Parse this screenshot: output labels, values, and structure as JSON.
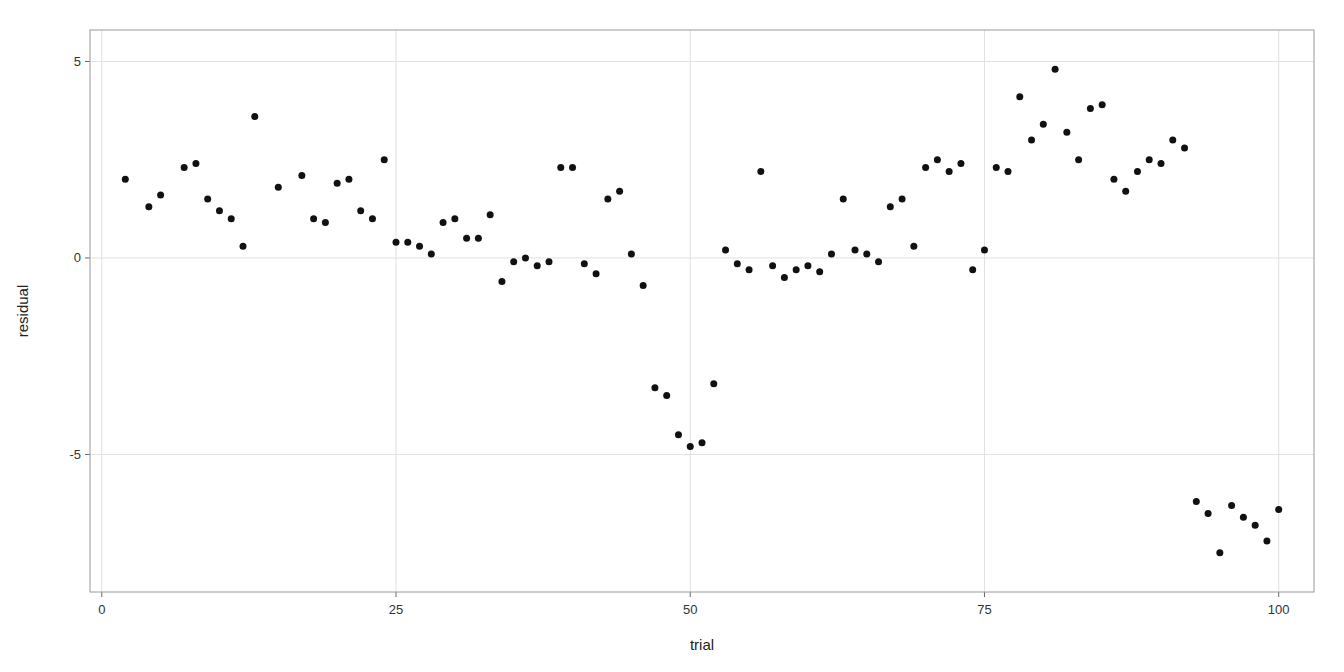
{
  "chart_data": {
    "type": "scatter",
    "xlabel": "trial",
    "ylabel": "residual",
    "x": [
      2,
      4,
      5,
      7,
      8,
      9,
      10,
      11,
      12,
      13,
      15,
      17,
      18,
      19,
      20,
      21,
      22,
      23,
      24,
      25,
      26,
      27,
      28,
      29,
      30,
      31,
      32,
      33,
      34,
      35,
      36,
      37,
      38,
      39,
      40,
      41,
      42,
      43,
      44,
      45,
      46,
      47,
      48,
      49,
      50,
      51,
      52,
      53,
      54,
      55,
      56,
      57,
      58,
      59,
      60,
      61,
      62,
      63,
      64,
      65,
      66,
      67,
      68,
      69,
      70,
      71,
      72,
      73,
      74,
      75,
      76,
      77,
      78,
      79,
      80,
      81,
      82,
      83,
      84,
      85,
      86,
      87,
      88,
      89,
      90,
      91,
      92,
      93,
      94,
      95,
      96,
      97,
      98,
      99,
      100
    ],
    "values": [
      2.0,
      1.3,
      1.6,
      2.3,
      2.4,
      1.5,
      1.2,
      1.0,
      0.3,
      3.6,
      1.8,
      2.1,
      1.0,
      0.9,
      1.9,
      2.0,
      1.2,
      1.0,
      2.5,
      0.4,
      0.4,
      0.3,
      0.1,
      0.9,
      1.0,
      0.5,
      0.5,
      1.1,
      -0.6,
      -0.1,
      0.0,
      -0.2,
      -0.1,
      2.3,
      2.3,
      -0.15,
      -0.4,
      1.5,
      1.7,
      0.1,
      -0.7,
      -3.3,
      -3.5,
      -4.5,
      -4.8,
      -4.7,
      -3.2,
      0.2,
      -0.15,
      -0.3,
      2.2,
      -0.2,
      -0.5,
      -0.3,
      -0.2,
      -0.35,
      0.1,
      1.5,
      0.2,
      0.1,
      -0.1,
      1.3,
      1.5,
      0.3,
      2.3,
      2.5,
      2.2,
      2.4,
      -0.3,
      0.2,
      2.3,
      2.2,
      4.1,
      3.0,
      3.4,
      4.8,
      3.2,
      2.5,
      3.8,
      3.9,
      2.0,
      1.7,
      2.2,
      2.5,
      2.4,
      3.0,
      2.8,
      -6.2,
      -6.5,
      -7.5,
      -6.3,
      -6.6,
      -6.8,
      -7.2,
      -6.4
    ],
    "color": "#111111",
    "xlim": [
      -1,
      103
    ],
    "ylim": [
      -8.5,
      5.8
    ],
    "xticks": [
      0,
      25,
      50,
      75,
      100
    ],
    "yticks": [
      -5,
      0,
      5
    ],
    "grid": true
  }
}
